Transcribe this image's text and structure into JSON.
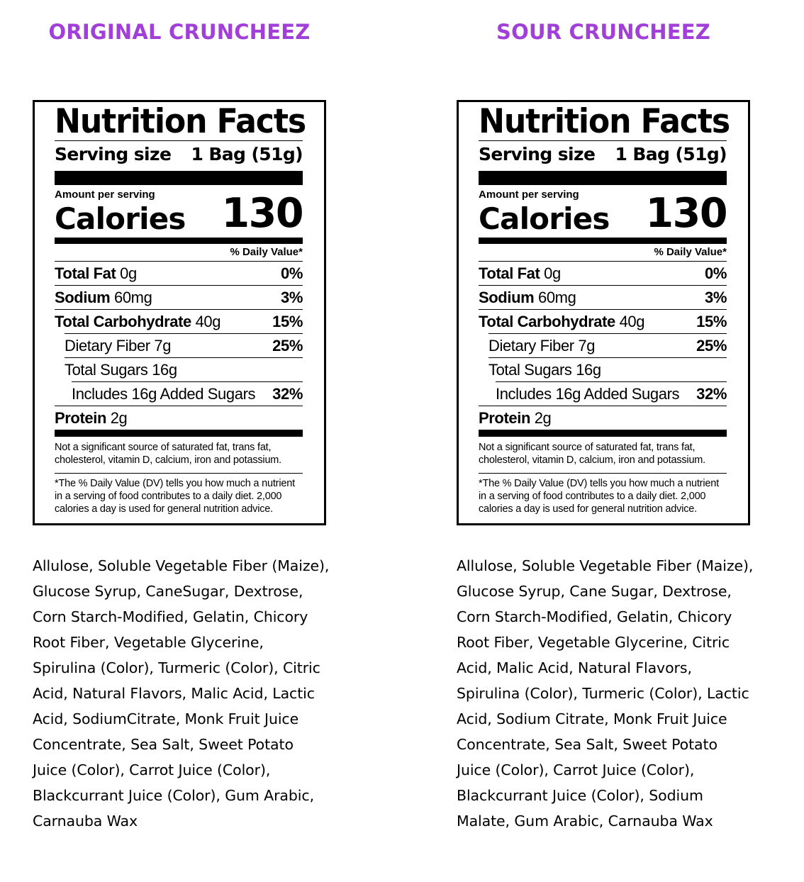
{
  "products": [
    {
      "title": "ORIGINAL CRUNCHEEZ",
      "nutrition": {
        "heading": "Nutrition Facts",
        "serving_label": "Serving size",
        "serving_value": "1 Bag (51g)",
        "amount_per_serving": "Amount per serving",
        "calories_label": "Calories",
        "calories_value": "130",
        "dv_header": "% Daily Value*",
        "rows": [
          {
            "name": "Total Fat",
            "amount": "0g",
            "dv": "0%"
          },
          {
            "name": "Sodium",
            "amount": "60mg",
            "dv": "3%"
          },
          {
            "name": "Total Carbohydrate",
            "amount": "40g",
            "dv": "15%"
          },
          {
            "name": "Dietary Fiber 7g",
            "amount": "",
            "dv": "25%"
          },
          {
            "name": "Total Sugars 16g",
            "amount": "",
            "dv": ""
          },
          {
            "name": "Includes 16g Added Sugars",
            "amount": "",
            "dv": "32%"
          },
          {
            "name": "Protein",
            "amount": "2g",
            "dv": ""
          }
        ],
        "footnote": "Not a significant source of saturated fat, trans fat, cholesterol, vitamin D, calcium, iron and potassium.",
        "dv_note": "*The % Daily Value (DV) tells you how much a nutrient in a serving of food contributes to a daily diet. 2,000 calories a day is used for general nutrition advice."
      },
      "ingredients": "Allulose, Soluble Vegetable Fiber (Maize), Glucose Syrup, CaneSugar, Dextrose, Corn Starch-Modified, Gelatin, Chicory Root Fiber, Vegetable Glycerine, Spirulina (Color), Turmeric (Color), Citric Acid, Natural Flavors, Malic Acid, Lactic Acid, SodiumCitrate, Monk Fruit Juice Concentrate, Sea Salt, Sweet Potato Juice (Color), Carrot Juice (Color), Blackcurrant Juice (Color), Gum Arabic, Carnauba Wax"
    },
    {
      "title": "SOUR CRUNCHEEZ",
      "nutrition": {
        "heading": "Nutrition Facts",
        "serving_label": "Serving size",
        "serving_value": "1 Bag (51g)",
        "amount_per_serving": "Amount per serving",
        "calories_label": "Calories",
        "calories_value": "130",
        "dv_header": "% Daily Value*",
        "rows": [
          {
            "name": "Total Fat",
            "amount": "0g",
            "dv": "0%"
          },
          {
            "name": "Sodium",
            "amount": "60mg",
            "dv": "3%"
          },
          {
            "name": "Total Carbohydrate",
            "amount": "40g",
            "dv": "15%"
          },
          {
            "name": "Dietary Fiber 7g",
            "amount": "",
            "dv": "25%"
          },
          {
            "name": "Total Sugars 16g",
            "amount": "",
            "dv": ""
          },
          {
            "name": "Includes 16g Added Sugars",
            "amount": "",
            "dv": "32%"
          },
          {
            "name": "Protein",
            "amount": "2g",
            "dv": ""
          }
        ],
        "footnote": "Not a significant source of saturated fat, trans fat, cholesterol, vitamin D, calcium, iron and potassium.",
        "dv_note": "*The % Daily Value (DV) tells you how much a nutrient in a serving of food contributes to a daily diet. 2,000 calories a day is used for general nutrition advice."
      },
      "ingredients": "Allulose, Soluble Vegetable Fiber (Maize), Glucose Syrup, Cane Sugar, Dextrose, Corn Starch-Modified, Gelatin, Chicory Root Fiber, Vegetable Glycerine, Citric Acid, Malic Acid, Natural Flavors, Spirulina (Color), Turmeric (Color), Lactic Acid, Sodium Citrate, Monk Fruit Juice Concentrate, Sea Salt, Sweet Potato Juice (Color), Carrot Juice (Color), Blackcurrant Juice (Color), Sodium Malate, Gum Arabic, Carnauba Wax"
    }
  ],
  "colors": {
    "title": "#a13fd8",
    "text": "#000000",
    "background": "#ffffff"
  }
}
